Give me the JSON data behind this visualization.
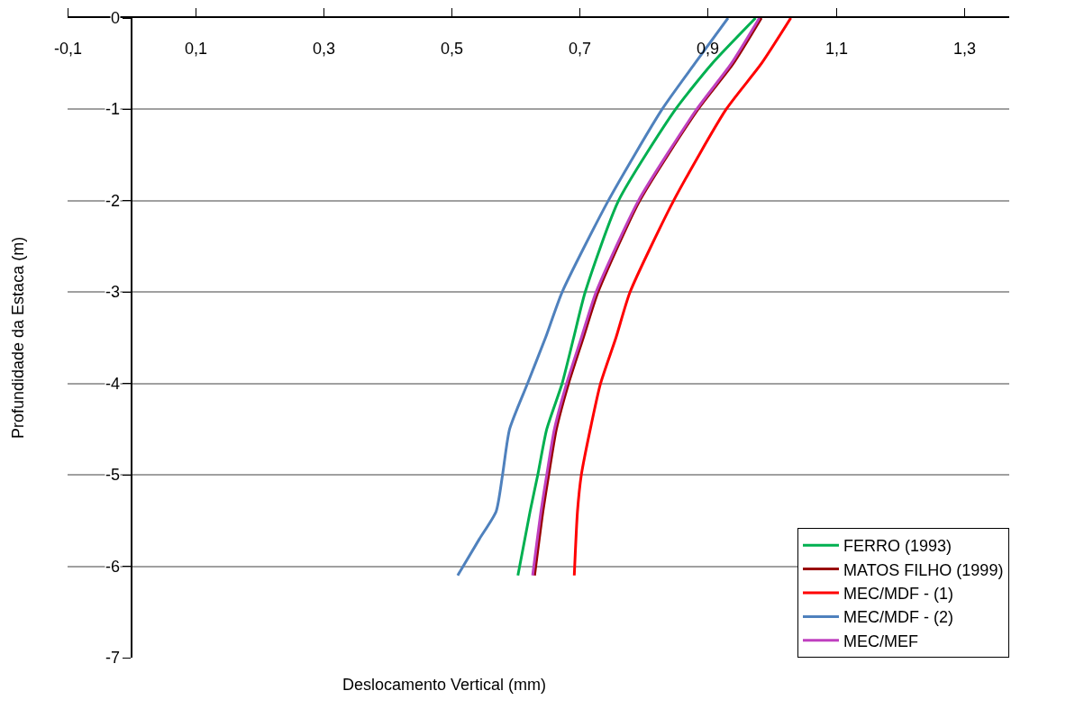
{
  "chart_data": {
    "type": "line",
    "xlabel": "Deslocamento Vertical (mm)",
    "ylabel": "Profundidade da Estaca (m)",
    "series": [
      {
        "name": "FERRO (1993)",
        "color": "#00b050",
        "x": [
          0.974,
          0.906,
          0.849,
          0.76,
          0.708,
          0.69,
          0.672,
          0.648,
          0.634,
          0.622,
          0.603
        ],
        "values": [
          0,
          -0.5,
          -1,
          -2,
          -3,
          -3.5,
          -4,
          -4.5,
          -5,
          -5.4,
          -6.1
        ]
      },
      {
        "name": "MATOS FILHO (1999)",
        "color": "#990000",
        "x": [
          0.983,
          0.939,
          0.884,
          0.793,
          0.728,
          0.705,
          0.682,
          0.663,
          0.651,
          0.642,
          0.629
        ],
        "values": [
          0,
          -0.5,
          -1,
          -2,
          -3,
          -3.5,
          -4,
          -4.5,
          -5,
          -5.4,
          -6.1
        ]
      },
      {
        "name": "MEC/MDF - (1)",
        "color": "#ff0000",
        "x": [
          1.029,
          0.983,
          0.928,
          0.846,
          0.778,
          0.756,
          0.732,
          0.716,
          0.702,
          0.696,
          0.691
        ],
        "values": [
          0,
          -0.5,
          -1,
          -2,
          -3,
          -3.5,
          -4,
          -4.5,
          -5,
          -5.4,
          -6.1
        ]
      },
      {
        "name": "MEC/MDF - (2)",
        "color": "#4f81bd",
        "x": [
          0.931,
          0.879,
          0.828,
          0.744,
          0.672,
          0.646,
          0.618,
          0.59,
          0.579,
          0.569,
          0.543,
          0.509
        ],
        "values": [
          0,
          -0.5,
          -1,
          -2,
          -3,
          -3.5,
          -4,
          -4.5,
          -5,
          -5.4,
          -5.7,
          -6.1
        ]
      },
      {
        "name": "MEC/MEF",
        "color": "#bf40bf",
        "x": [
          0.98,
          0.936,
          0.882,
          0.791,
          0.725,
          0.702,
          0.679,
          0.66,
          0.648,
          0.639,
          0.626
        ],
        "values": [
          0,
          -0.5,
          -1,
          -2,
          -3,
          -3.5,
          -4,
          -4.5,
          -5,
          -5.4,
          -6.1
        ]
      }
    ],
    "xlim": [
      -0.1,
      1.37
    ],
    "xticks": [
      {
        "value": -0.1,
        "label": "-0,1"
      },
      {
        "value": 0.1,
        "label": "0,1"
      },
      {
        "value": 0.3,
        "label": "0,3"
      },
      {
        "value": 0.5,
        "label": "0,5"
      },
      {
        "value": 0.7,
        "label": "0,7"
      },
      {
        "value": 0.9,
        "label": "0,9"
      },
      {
        "value": 1.1,
        "label": "1,1"
      },
      {
        "value": 1.3,
        "label": "1,3"
      }
    ],
    "ylim": [
      -7,
      0
    ],
    "yticks": [
      0,
      -1,
      -2,
      -3,
      -4,
      -5,
      -6,
      -7
    ],
    "grid": "y",
    "legend": "bottom right",
    "marker": "none",
    "line_style": "solid"
  }
}
